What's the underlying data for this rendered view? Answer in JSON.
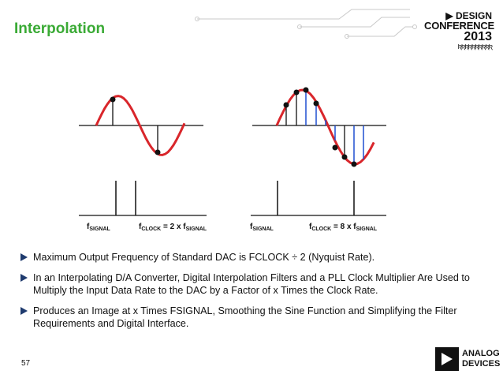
{
  "title": "Interpolation",
  "logo": {
    "line1": "DESIGN",
    "line2": "CONFERENCE",
    "line3": "2013",
    "deco": "ƦƦƦƦƦƦƦƦƦƦ"
  },
  "diagram": {
    "left_label_signal": "SIGNAL",
    "left_label_clock_main": "CLOCK",
    "left_label_clock_eq": " = 2 x f",
    "left_label_clock_sub": "SIGNAL",
    "right_label_signal": "SIGNAL",
    "right_label_clock_main": "CLOCK",
    "right_label_clock_eq": " = 8 x f",
    "right_label_clock_sub": "SIGNAL",
    "f": "f",
    "colors": {
      "sine": "#d9262b",
      "sample": "#111111",
      "interp": "#1f4fd0",
      "axis": "#111111"
    }
  },
  "bullets": [
    "Maximum Output Frequency of Standard DAC is FCLOCK ÷ 2 (Nyquist Rate).",
    "In an Interpolating D/A Converter, Digital Interpolation Filters and a PLL Clock Multiplier Are Used to Multiply the Input Data Rate to the DAC by a Factor of x Times the Clock Rate.",
    "Produces an Image at x Times FSIGNAL, Smoothing the Sine Function and Simplifying the Filter Requirements and Digital Interface."
  ],
  "page_number": "57",
  "company": {
    "line1": "ANALOG",
    "line2": "DEVICES"
  }
}
